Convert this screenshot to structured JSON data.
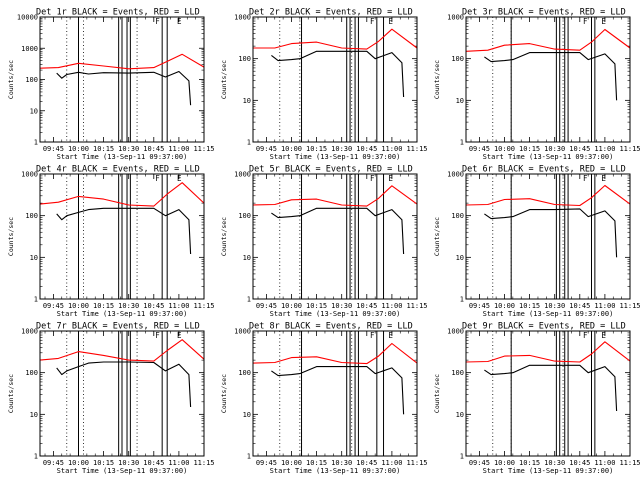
{
  "figure": {
    "rows": 3,
    "cols": 3,
    "colors": {
      "events": "#000000",
      "lld": "#ff0000",
      "background": "#ffffff"
    }
  },
  "chart_data": [
    {
      "type": "line",
      "title": "Det 1r BLACK = Events, RED = LLD",
      "xlabel": "Start Time (13-Sep-11 09:37:00)",
      "ylabel": "Counts/sec",
      "y_scale": "log",
      "ylim": [
        1,
        10000
      ],
      "y_ticks": [
        1,
        10,
        100,
        1000,
        10000
      ],
      "y_tick_labels": [
        "1",
        "10",
        "100",
        "1000",
        "10000"
      ],
      "xlim": [
        "09:37",
        "11:15"
      ],
      "x_ticks": [
        "09:45",
        "10:00",
        "10:15",
        "10:30",
        "10:45",
        "11:00",
        "11:15"
      ],
      "dotted_lines": [
        "09:53",
        "10:03",
        "10:35"
      ],
      "vertical_lines": [
        "10:00",
        "10:24",
        "10:26",
        "10:29",
        "10:31",
        "10:50",
        "10:53"
      ],
      "flags": [
        {
          "label": "F",
          "x": "10:45"
        },
        {
          "label": "E",
          "x": "10:58"
        }
      ],
      "grid": false,
      "legend": "title",
      "series": [
        {
          "color": "red",
          "x": [
            "09:37",
            "09:48",
            "10:00",
            "10:15",
            "10:30",
            "10:45",
            "10:53",
            "11:02",
            "11:15"
          ],
          "y": [
            230,
            240,
            330,
            270,
            220,
            240,
            380,
            640,
            250
          ]
        },
        {
          "color": "black",
          "x": [
            "09:47",
            "09:50",
            "09:53",
            "10:00",
            "10:06",
            "10:15",
            "10:30",
            "10:45",
            "10:52",
            "11:00",
            "11:06",
            "11:07"
          ],
          "y": [
            160,
            110,
            145,
            170,
            150,
            165,
            160,
            170,
            120,
            180,
            90,
            15
          ]
        }
      ]
    },
    {
      "type": "line",
      "title": "Det 2r BLACK = Events, RED = LLD",
      "xlabel": "Start Time (13-Sep-11 09:37:00)",
      "ylabel": "Counts/sec",
      "y_scale": "log",
      "ylim": [
        1,
        1000
      ],
      "y_ticks": [
        1,
        10,
        100,
        1000
      ],
      "y_tick_labels": [
        "1",
        "10",
        "100",
        "1000"
      ],
      "xlim": [
        "09:37",
        "11:15"
      ],
      "x_ticks": [
        "09:45",
        "10:00",
        "10:15",
        "10:30",
        "10:45",
        "11:00",
        "11:15"
      ],
      "dotted_lines": [
        "09:53",
        "10:05",
        "10:36"
      ],
      "vertical_lines": [
        "10:06",
        "10:33",
        "10:35",
        "10:38",
        "10:40",
        "10:51",
        "10:55"
      ],
      "flags": [
        {
          "label": "F",
          "x": "10:46"
        },
        {
          "label": "E",
          "x": "10:57"
        }
      ],
      "grid": false,
      "legend": "title",
      "series": [
        {
          "color": "red",
          "x": [
            "09:37",
            "09:50",
            "10:00",
            "10:15",
            "10:30",
            "10:45",
            "10:52",
            "11:00",
            "11:15"
          ],
          "y": [
            180,
            180,
            230,
            250,
            180,
            170,
            260,
            510,
            180
          ]
        },
        {
          "color": "black",
          "x": [
            "09:48",
            "09:52",
            "10:00",
            "10:05",
            "10:15",
            "10:30",
            "10:45",
            "10:50",
            "11:00",
            "11:06",
            "11:07"
          ],
          "y": [
            120,
            90,
            95,
            100,
            150,
            150,
            150,
            100,
            140,
            80,
            12
          ]
        }
      ]
    },
    {
      "type": "line",
      "title": "Det 3r BLACK = Events, RED = LLD",
      "xlabel": "Start Time (13-Sep-11 09:37:00)",
      "ylabel": "Counts/sec",
      "y_scale": "log",
      "ylim": [
        1,
        1000
      ],
      "y_ticks": [
        1,
        10,
        100,
        1000
      ],
      "y_tick_labels": [
        "1",
        "10",
        "100",
        "1000"
      ],
      "xlim": [
        "09:37",
        "11:15"
      ],
      "x_ticks": [
        "09:45",
        "10:00",
        "10:15",
        "10:30",
        "10:45",
        "11:00",
        "11:15"
      ],
      "dotted_lines": [
        "09:53",
        "10:04",
        "10:35"
      ],
      "vertical_lines": [
        "10:04",
        "10:31",
        "10:33",
        "10:36",
        "10:38",
        "10:52",
        "10:54"
      ],
      "flags": [
        {
          "label": "F",
          "x": "10:46"
        },
        {
          "label": "E",
          "x": "10:57"
        }
      ],
      "grid": false,
      "legend": "title",
      "series": [
        {
          "color": "red",
          "x": [
            "09:37",
            "09:50",
            "10:00",
            "10:15",
            "10:30",
            "10:45",
            "10:52",
            "11:00",
            "11:15"
          ],
          "y": [
            150,
            160,
            210,
            230,
            170,
            160,
            250,
            500,
            180
          ]
        },
        {
          "color": "black",
          "x": [
            "09:48",
            "09:52",
            "10:00",
            "10:05",
            "10:15",
            "10:30",
            "10:45",
            "10:50",
            "11:00",
            "11:06",
            "11:07"
          ],
          "y": [
            110,
            85,
            90,
            95,
            140,
            140,
            140,
            95,
            130,
            75,
            10
          ]
        }
      ]
    },
    {
      "type": "line",
      "title": "Det 4r BLACK = Events, RED = LLD",
      "xlabel": "Start Time (13-Sep-11 09:37:00)",
      "ylabel": "Counts/sec",
      "y_scale": "log",
      "ylim": [
        1,
        1000
      ],
      "y_ticks": [
        1,
        10,
        100,
        1000
      ],
      "y_tick_labels": [
        "1",
        "10",
        "100",
        "1000"
      ],
      "xlim": [
        "09:37",
        "11:15"
      ],
      "x_ticks": [
        "09:45",
        "10:00",
        "10:15",
        "10:30",
        "10:45",
        "11:00",
        "11:15"
      ],
      "dotted_lines": [
        "09:53",
        "10:03",
        "10:35"
      ],
      "vertical_lines": [
        "10:00",
        "10:24",
        "10:26",
        "10:29",
        "10:31",
        "10:50",
        "10:53"
      ],
      "flags": [
        {
          "label": "F",
          "x": "10:45"
        },
        {
          "label": "E",
          "x": "10:58"
        }
      ],
      "grid": false,
      "legend": "title",
      "series": [
        {
          "color": "red",
          "x": [
            "09:37",
            "09:48",
            "10:00",
            "10:15",
            "10:30",
            "10:45",
            "10:53",
            "11:02",
            "11:15"
          ],
          "y": [
            190,
            210,
            290,
            250,
            180,
            170,
            330,
            620,
            200
          ]
        },
        {
          "color": "black",
          "x": [
            "09:47",
            "09:50",
            "09:53",
            "10:00",
            "10:06",
            "10:15",
            "10:30",
            "10:45",
            "10:52",
            "11:00",
            "11:06",
            "11:07"
          ],
          "y": [
            110,
            80,
            100,
            120,
            140,
            150,
            150,
            150,
            100,
            140,
            80,
            12
          ]
        }
      ]
    },
    {
      "type": "line",
      "title": "Det 5r BLACK = Events, RED = LLD",
      "xlabel": "Start Time (13-Sep-11 09:37:00)",
      "ylabel": "Counts/sec",
      "y_scale": "log",
      "ylim": [
        1,
        1000
      ],
      "y_ticks": [
        1,
        10,
        100,
        1000
      ],
      "y_tick_labels": [
        "1",
        "10",
        "100",
        "1000"
      ],
      "xlim": [
        "09:37",
        "11:15"
      ],
      "x_ticks": [
        "09:45",
        "10:00",
        "10:15",
        "10:30",
        "10:45",
        "11:00",
        "11:15"
      ],
      "dotted_lines": [
        "09:53",
        "10:05",
        "10:36"
      ],
      "vertical_lines": [
        "10:06",
        "10:33",
        "10:35",
        "10:38",
        "10:40",
        "10:51",
        "10:55"
      ],
      "flags": [
        {
          "label": "F",
          "x": "10:46"
        },
        {
          "label": "E",
          "x": "10:57"
        }
      ],
      "grid": false,
      "legend": "title",
      "series": [
        {
          "color": "red",
          "x": [
            "09:37",
            "09:50",
            "10:00",
            "10:15",
            "10:30",
            "10:45",
            "10:52",
            "11:00",
            "11:15"
          ],
          "y": [
            180,
            185,
            240,
            250,
            180,
            170,
            260,
            520,
            190
          ]
        },
        {
          "color": "black",
          "x": [
            "09:48",
            "09:52",
            "10:00",
            "10:05",
            "10:15",
            "10:30",
            "10:45",
            "10:50",
            "11:00",
            "11:06",
            "11:07"
          ],
          "y": [
            115,
            90,
            95,
            100,
            150,
            150,
            150,
            100,
            140,
            80,
            12
          ]
        }
      ]
    },
    {
      "type": "line",
      "title": "Det 6r BLACK = Events, RED = LLD",
      "xlabel": "Start Time (13-Sep-11 09:37:00)",
      "ylabel": "Counts/sec",
      "y_scale": "log",
      "ylim": [
        1,
        1000
      ],
      "y_ticks": [
        1,
        10,
        100,
        1000
      ],
      "y_tick_labels": [
        "1",
        "10",
        "100",
        "1000"
      ],
      "xlim": [
        "09:37",
        "11:15"
      ],
      "x_ticks": [
        "09:45",
        "10:00",
        "10:15",
        "10:30",
        "10:45",
        "11:00",
        "11:15"
      ],
      "dotted_lines": [
        "09:53",
        "10:04",
        "10:35"
      ],
      "vertical_lines": [
        "10:04",
        "10:31",
        "10:33",
        "10:36",
        "10:38",
        "10:52",
        "10:54"
      ],
      "flags": [
        {
          "label": "F",
          "x": "10:46"
        },
        {
          "label": "E",
          "x": "10:57"
        }
      ],
      "grid": false,
      "legend": "title",
      "series": [
        {
          "color": "red",
          "x": [
            "09:37",
            "09:50",
            "10:00",
            "10:15",
            "10:30",
            "10:45",
            "10:52",
            "11:00",
            "11:15"
          ],
          "y": [
            180,
            185,
            245,
            255,
            185,
            175,
            270,
            530,
            190
          ]
        },
        {
          "color": "black",
          "x": [
            "09:48",
            "09:52",
            "10:00",
            "10:05",
            "10:15",
            "10:30",
            "10:45",
            "10:50",
            "11:00",
            "11:06",
            "11:07"
          ],
          "y": [
            110,
            85,
            90,
            95,
            140,
            140,
            145,
            95,
            130,
            75,
            10
          ]
        }
      ]
    },
    {
      "type": "line",
      "title": "Det 7r BLACK = Events, RED = LLD",
      "xlabel": "Start Time (13-Sep-11 09:37:00)",
      "ylabel": "Counts/sec",
      "y_scale": "log",
      "ylim": [
        1,
        1000
      ],
      "y_ticks": [
        1,
        10,
        100,
        1000
      ],
      "y_tick_labels": [
        "1",
        "10",
        "100",
        "1000"
      ],
      "xlim": [
        "09:37",
        "11:15"
      ],
      "x_ticks": [
        "09:45",
        "10:00",
        "10:15",
        "10:30",
        "10:45",
        "11:00",
        "11:15"
      ],
      "dotted_lines": [
        "09:53",
        "10:03",
        "10:35"
      ],
      "vertical_lines": [
        "10:00",
        "10:24",
        "10:26",
        "10:29",
        "10:31",
        "10:50",
        "10:53"
      ],
      "flags": [
        {
          "label": "F",
          "x": "10:45"
        },
        {
          "label": "E",
          "x": "10:58"
        }
      ],
      "grid": false,
      "legend": "title",
      "series": [
        {
          "color": "red",
          "x": [
            "09:37",
            "09:48",
            "10:00",
            "10:15",
            "10:30",
            "10:45",
            "10:53",
            "11:02",
            "11:15"
          ],
          "y": [
            200,
            220,
            320,
            260,
            200,
            190,
            340,
            620,
            210
          ]
        },
        {
          "color": "black",
          "x": [
            "09:47",
            "09:50",
            "09:53",
            "10:00",
            "10:06",
            "10:15",
            "10:30",
            "10:45",
            "10:52",
            "11:00",
            "11:06",
            "11:07"
          ],
          "y": [
            130,
            90,
            110,
            140,
            170,
            180,
            180,
            175,
            110,
            160,
            90,
            15
          ]
        }
      ]
    },
    {
      "type": "line",
      "title": "Det 8r BLACK = Events, RED = LLD",
      "xlabel": "Start Time (13-Sep-11 09:37:00)",
      "ylabel": "Counts/sec",
      "y_scale": "log",
      "ylim": [
        1,
        1000
      ],
      "y_ticks": [
        1,
        10,
        100,
        1000
      ],
      "y_tick_labels": [
        "1",
        "10",
        "100",
        "1000"
      ],
      "xlim": [
        "09:37",
        "11:15"
      ],
      "x_ticks": [
        "09:45",
        "10:00",
        "10:15",
        "10:30",
        "10:45",
        "11:00",
        "11:15"
      ],
      "dotted_lines": [
        "09:53",
        "10:05",
        "10:36"
      ],
      "vertical_lines": [
        "10:06",
        "10:33",
        "10:35",
        "10:38",
        "10:40",
        "10:51",
        "10:55"
      ],
      "flags": [
        {
          "label": "F",
          "x": "10:46"
        },
        {
          "label": "E",
          "x": "10:57"
        }
      ],
      "grid": false,
      "legend": "title",
      "series": [
        {
          "color": "red",
          "x": [
            "09:37",
            "09:50",
            "10:00",
            "10:15",
            "10:30",
            "10:45",
            "10:52",
            "11:00",
            "11:15"
          ],
          "y": [
            170,
            175,
            230,
            240,
            175,
            165,
            250,
            500,
            170
          ]
        },
        {
          "color": "black",
          "x": [
            "09:48",
            "09:52",
            "10:00",
            "10:05",
            "10:15",
            "10:30",
            "10:45",
            "10:50",
            "11:00",
            "11:06",
            "11:07"
          ],
          "y": [
            110,
            85,
            90,
            95,
            140,
            140,
            140,
            95,
            130,
            75,
            10
          ]
        }
      ]
    },
    {
      "type": "line",
      "title": "Det 9r BLACK = Events, RED = LLD",
      "xlabel": "Start Time (13-Sep-11 09:37:00)",
      "ylabel": "Counts/sec",
      "y_scale": "log",
      "ylim": [
        1,
        1000
      ],
      "y_ticks": [
        1,
        10,
        100,
        1000
      ],
      "y_tick_labels": [
        "1",
        "10",
        "100",
        "1000"
      ],
      "xlim": [
        "09:37",
        "11:15"
      ],
      "x_ticks": [
        "09:45",
        "10:00",
        "10:15",
        "10:30",
        "10:45",
        "11:00",
        "11:15"
      ],
      "dotted_lines": [
        "09:53",
        "10:04",
        "10:35"
      ],
      "vertical_lines": [
        "10:04",
        "10:31",
        "10:33",
        "10:36",
        "10:38",
        "10:52",
        "10:54"
      ],
      "flags": [
        {
          "label": "F",
          "x": "10:46"
        },
        {
          "label": "E",
          "x": "10:57"
        }
      ],
      "grid": false,
      "legend": "title",
      "series": [
        {
          "color": "red",
          "x": [
            "09:37",
            "09:50",
            "10:00",
            "10:15",
            "10:30",
            "10:45",
            "10:52",
            "11:00",
            "11:15"
          ],
          "y": [
            180,
            185,
            250,
            260,
            190,
            180,
            280,
            550,
            190
          ]
        },
        {
          "color": "black",
          "x": [
            "09:48",
            "09:52",
            "10:00",
            "10:05",
            "10:15",
            "10:30",
            "10:45",
            "10:50",
            "11:00",
            "11:06",
            "11:07"
          ],
          "y": [
            115,
            90,
            95,
            100,
            150,
            150,
            150,
            100,
            140,
            80,
            12
          ]
        }
      ]
    }
  ]
}
